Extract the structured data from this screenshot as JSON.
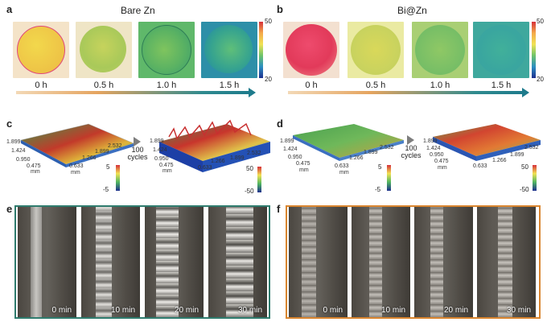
{
  "panels": {
    "a": {
      "letter": "a",
      "title": "Bare Zn",
      "times": [
        "0 h",
        "0.5 h",
        "1.0 h",
        "1.5 h"
      ],
      "colorbar": {
        "max": "50",
        "min": "20"
      }
    },
    "b": {
      "letter": "b",
      "title": "Bi@Zn",
      "times": [
        "0 h",
        "0.5 h",
        "1.0 h",
        "1.5 h"
      ],
      "colorbar": {
        "max": "50",
        "min": "20"
      }
    },
    "c": {
      "letter": "c",
      "cycles_line1": "100",
      "cycles_line2": "cycles",
      "left_axis": {
        "y": [
          "1.899",
          "1.424",
          "0.950",
          "0.475"
        ],
        "y_unit": "mm",
        "x": [
          "0.633",
          "1.266",
          "1.899",
          "2.532"
        ],
        "x_unit": "mm"
      },
      "left_colorbar": {
        "max": "5",
        "min": "-5"
      },
      "right_axis": {
        "y": [
          "1.899",
          "1.424",
          "0.950",
          "0.475"
        ],
        "y_unit": "mm",
        "x": [
          "0.633",
          "1.266",
          "1.899",
          "2.532"
        ]
      },
      "right_colorbar": {
        "max": "50",
        "min": "-50"
      }
    },
    "d": {
      "letter": "d",
      "cycles_line1": "100",
      "cycles_line2": "cycles",
      "left_axis": {
        "y": [
          "1.899",
          "1.424",
          "0.950",
          "0.475"
        ],
        "y_unit": "mm",
        "x": [
          "0.633",
          "1.266",
          "1.899",
          "2.532"
        ],
        "x_unit": "mm"
      },
      "left_colorbar": {
        "max": "5",
        "min": "-5"
      },
      "right_axis": {
        "y": [
          "1.899",
          "1.424",
          "0.950",
          "0.475"
        ],
        "y_unit": "mm",
        "x": [
          "0.633",
          "1.266",
          "1.899",
          "2.532"
        ]
      },
      "right_colorbar": {
        "max": "50",
        "min": "-50"
      }
    },
    "e": {
      "letter": "e",
      "times": [
        "0 min",
        "10 min",
        "20 min",
        "30 min"
      ],
      "border_color": "#2f7c6e"
    },
    "f": {
      "letter": "f",
      "times": [
        "0 min",
        "10 min",
        "20 min",
        "30 min"
      ],
      "border_color": "#d9852f"
    }
  },
  "colors": {
    "arrow_left": "#f3d9b6",
    "arrow_right": "#1e7b8c"
  }
}
